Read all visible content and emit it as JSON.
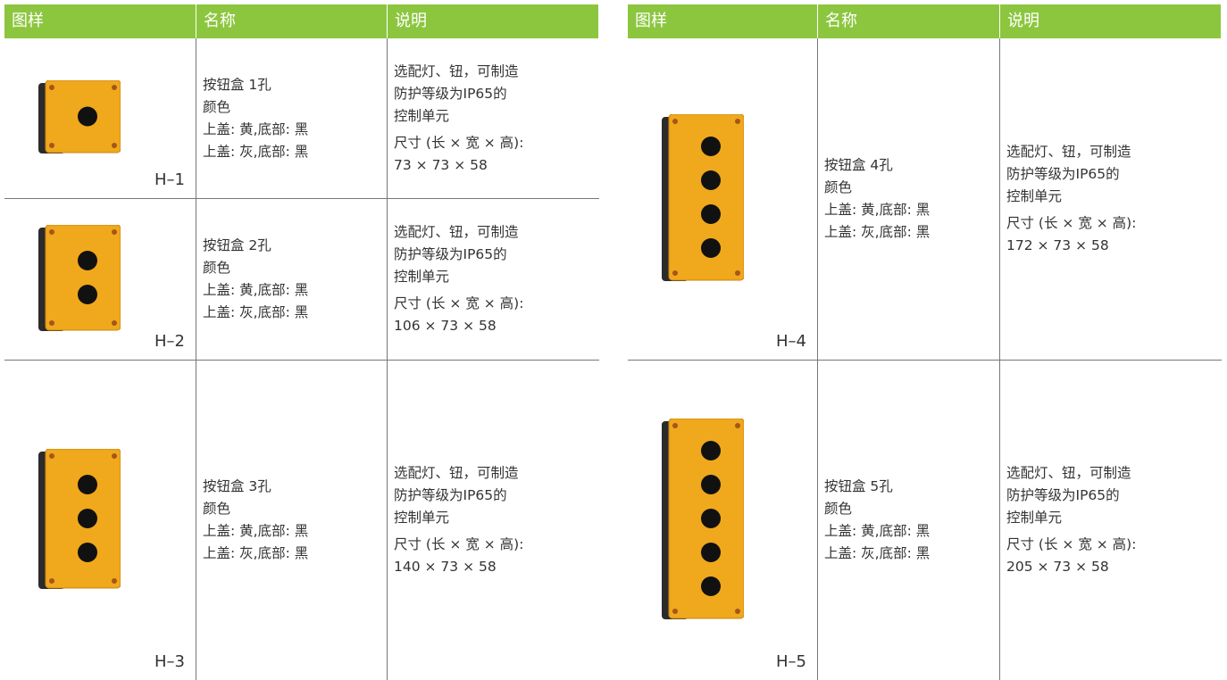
{
  "tables": [
    {
      "header": [
        "图样",
        "名称",
        "说明"
      ],
      "rows": [
        {
          "label": "H–1",
          "name": [
            "按钮盒 1孔",
            "颜色",
            "上盖: 黄,底部: 黑",
            "上盖: 灰,底部: 黑"
          ],
          "description": [
            "选配灯、钮，可制造",
            "防护等级为IP65的",
            "控制单元"
          ],
          "size": [
            "尺寸 (长 × 宽 × 高):",
            "73 × 73 × 58"
          ]
        },
        {
          "label": "H–2",
          "name": [
            "按钮盒 2孔",
            "颜色",
            "上盖: 黄,底部: 黑",
            "上盖: 灰,底部: 黑"
          ],
          "description": [
            "选配灯、钮，可制造",
            "防护等级为IP65的",
            "控制单元"
          ],
          "size": [
            "尺寸 (长 × 宽 × 高):",
            "106 × 73 × 58"
          ]
        },
        {
          "label": "H–3",
          "name": [
            "按钮盒 3孔",
            "颜色",
            "上盖: 黄,底部: 黑",
            "上盖: 灰,底部: 黑"
          ],
          "description": [
            "选配灯、钮，可制造",
            "防护等级为IP65的",
            "控制单元"
          ],
          "size": [
            "尺寸 (长 × 宽 × 高):",
            "140 × 73 × 58"
          ]
        }
      ]
    },
    {
      "header": [
        "图样",
        "名称",
        "说明"
      ],
      "rows": [
        {
          "label": "H–4",
          "name": [
            "按钮盒 4孔",
            "颜色",
            "上盖: 黄,底部: 黑",
            "上盖: 灰,底部: 黑"
          ],
          "description": [
            "选配灯、钮，可制造",
            "防护等级为IP65的",
            "控制单元"
          ],
          "size": [
            "尺寸 (长 × 宽 × 高):",
            "172 × 73 × 58"
          ]
        },
        {
          "label": "H–5",
          "name": [
            "按钮盒 5孔",
            "颜色",
            "上盖: 黄,底部: 黑",
            "上盖: 灰,底部: 黑"
          ],
          "description": [
            "选配灯、钮，可制造",
            "防护等级为IP65的",
            "控制单元"
          ],
          "size": [
            "尺寸 (长 × 宽 × 高):",
            "205 × 73 × 58"
          ]
        }
      ]
    }
  ]
}
